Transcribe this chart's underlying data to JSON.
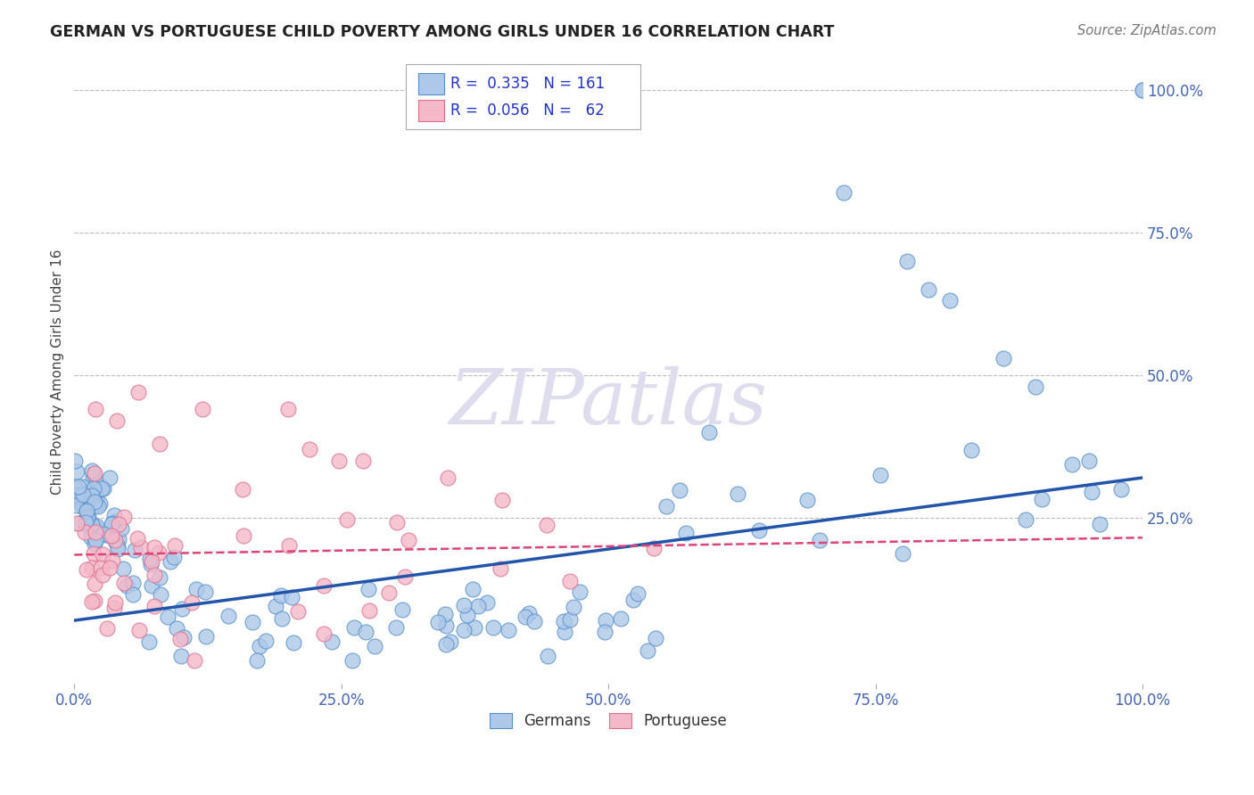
{
  "title": "GERMAN VS PORTUGUESE CHILD POVERTY AMONG GIRLS UNDER 16 CORRELATION CHART",
  "source": "Source: ZipAtlas.com",
  "ylabel": "Child Poverty Among Girls Under 16",
  "watermark": "ZIPatlas",
  "german_R": 0.335,
  "german_N": 161,
  "portuguese_R": 0.056,
  "portuguese_N": 62,
  "german_color": "#adc8e8",
  "german_edge_color": "#5590cc",
  "german_line_color": "#2255aa",
  "portuguese_color": "#f5b8c8",
  "portuguese_edge_color": "#dd7090",
  "portuguese_line_color": "#dd4477",
  "background_color": "#ffffff",
  "title_color": "#222222",
  "source_color": "#777777",
  "legend_label_color": "#2233cc",
  "grid_color": "#bbbbbb",
  "tick_color": "#4466bb",
  "watermark_color": "#ddddee",
  "german_line_start_y": 0.07,
  "german_line_end_y": 0.32,
  "portuguese_line_start_y": 0.185,
  "portuguese_line_end_y": 0.215,
  "xlim": [
    0.0,
    1.0
  ],
  "ylim": [
    -0.04,
    1.05
  ],
  "xticks": [
    0.0,
    0.25,
    0.5,
    0.75,
    1.0
  ],
  "yticks": [
    0.0,
    0.25,
    0.5,
    0.75,
    1.0
  ],
  "xticklabels": [
    "0.0%",
    "25.0%",
    "50.0%",
    "75.0%",
    "100.0%"
  ],
  "right_yticklabels": [
    "",
    "25.0%",
    "50.0%",
    "75.0%",
    "100.0%"
  ]
}
